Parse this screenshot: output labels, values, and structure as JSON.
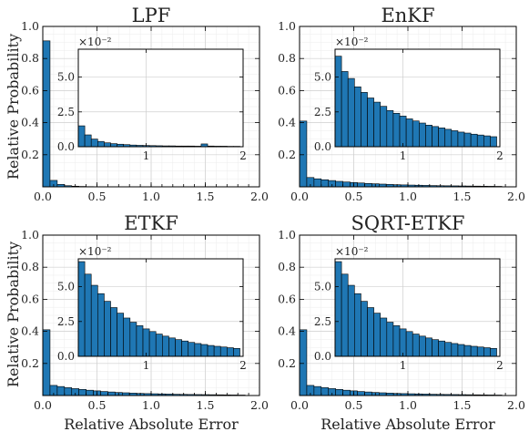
{
  "colors": {
    "bar": "#1f77b4"
  },
  "figure": {
    "ylabel": "Relative Probability",
    "xlabel": "Relative Absolute Error"
  },
  "chart_data": [
    {
      "type": "bar",
      "title": "LPF",
      "xlim": [
        0,
        2
      ],
      "ylim": [
        0,
        1
      ],
      "xticks": [
        "0.0",
        "0.5",
        "1.0",
        "1.5",
        "2.0"
      ],
      "yticks": [
        "0.2",
        "0.4",
        "0.6",
        "0.8",
        "1.0"
      ],
      "bin_width": 0.0667,
      "values": [
        0.91,
        0.04,
        0.015,
        0.007,
        0.004,
        0.0025,
        0.0015,
        0.001,
        0.0008,
        0.0006,
        0.0005,
        0.0004,
        0.0004,
        0.0003,
        0.0003,
        0.0003,
        0.0002,
        0.0002,
        0.0002,
        0.0002,
        0.0002,
        0.0001,
        0.0001,
        0.0001,
        0.0001,
        0.0001,
        0.0001,
        0.0001
      ],
      "inset": {
        "xlim": [
          0.3,
          2
        ],
        "ylim": [
          0,
          7
        ],
        "xticks": [
          "1",
          "2"
        ],
        "yticks": [
          "0.0",
          "2.5",
          "5.0"
        ],
        "multiplier": "×10⁻²",
        "bin_width": 0.0667,
        "values": [
          1.5,
          0.85,
          0.55,
          0.38,
          0.28,
          0.22,
          0.18,
          0.15,
          0.12,
          0.1,
          0.09,
          0.08,
          0.07,
          0.06,
          0.06,
          0.05,
          0.05,
          0.05,
          0.04,
          0.2,
          0.05,
          0.04,
          0.04,
          0.03,
          0.03,
          0.03
        ]
      }
    },
    {
      "type": "bar",
      "title": "EnKF",
      "xlim": [
        0,
        2
      ],
      "ylim": [
        0,
        1
      ],
      "xticks": [
        "0.0",
        "0.5",
        "1.0",
        "1.5",
        "2.0"
      ],
      "yticks": [
        "0.2",
        "0.4",
        "0.6",
        "0.8",
        "1.0"
      ],
      "bin_width": 0.0667,
      "values": [
        0.41,
        0.058,
        0.05,
        0.044,
        0.039,
        0.034,
        0.03,
        0.027,
        0.024,
        0.021,
        0.019,
        0.017,
        0.015,
        0.013,
        0.012,
        0.011,
        0.01,
        0.009,
        0.008,
        0.007,
        0.0065,
        0.006,
        0.0055,
        0.005,
        0.0045,
        0.004,
        0.0035,
        0.003
      ],
      "inset": {
        "xlim": [
          0.3,
          2
        ],
        "ylim": [
          0,
          7
        ],
        "xticks": [
          "1",
          "2"
        ],
        "yticks": [
          "0.0",
          "2.5",
          "5.0"
        ],
        "multiplier": "×10⁻²",
        "bin_width": 0.0667,
        "values": [
          6.5,
          5.4,
          4.9,
          4.3,
          3.9,
          3.5,
          3.2,
          2.9,
          2.6,
          2.4,
          2.2,
          2.0,
          1.85,
          1.7,
          1.55,
          1.45,
          1.35,
          1.25,
          1.15,
          1.05,
          0.98,
          0.9,
          0.84,
          0.78,
          0.72,
          0.66
        ]
      }
    },
    {
      "type": "bar",
      "title": "ETKF",
      "xlim": [
        0,
        2
      ],
      "ylim": [
        0,
        1
      ],
      "xticks": [
        "0.0",
        "0.5",
        "1.0",
        "1.5",
        "2.0"
      ],
      "yticks": [
        "0.2",
        "0.4",
        "0.6",
        "0.8",
        "1.0"
      ],
      "bin_width": 0.0667,
      "values": [
        0.41,
        0.063,
        0.056,
        0.049,
        0.043,
        0.038,
        0.033,
        0.029,
        0.025,
        0.022,
        0.019,
        0.017,
        0.015,
        0.013,
        0.012,
        0.011,
        0.01,
        0.009,
        0.008,
        0.007,
        0.0065,
        0.006,
        0.0055,
        0.005,
        0.0045,
        0.004,
        0.0035,
        0.003
      ],
      "inset": {
        "xlim": [
          0.3,
          2
        ],
        "ylim": [
          0,
          7
        ],
        "xticks": [
          "1",
          "2"
        ],
        "yticks": [
          "0.0",
          "2.5",
          "5.0"
        ],
        "multiplier": "×10⁻²",
        "bin_width": 0.0667,
        "values": [
          6.8,
          5.9,
          5.1,
          4.5,
          3.95,
          3.5,
          3.1,
          2.75,
          2.45,
          2.2,
          1.97,
          1.78,
          1.6,
          1.45,
          1.32,
          1.2,
          1.1,
          1.0,
          0.92,
          0.85,
          0.78,
          0.72,
          0.67,
          0.62,
          0.57,
          0.53
        ]
      }
    },
    {
      "type": "bar",
      "title": "SQRT-ETKF",
      "xlim": [
        0,
        2
      ],
      "ylim": [
        0,
        1
      ],
      "xticks": [
        "0.0",
        "0.5",
        "1.0",
        "1.5",
        "2.0"
      ],
      "yticks": [
        "0.2",
        "0.4",
        "0.6",
        "0.8",
        "1.0"
      ],
      "bin_width": 0.0667,
      "values": [
        0.41,
        0.063,
        0.056,
        0.049,
        0.043,
        0.038,
        0.033,
        0.029,
        0.025,
        0.022,
        0.019,
        0.017,
        0.015,
        0.013,
        0.012,
        0.011,
        0.01,
        0.009,
        0.008,
        0.007,
        0.0065,
        0.006,
        0.0055,
        0.005,
        0.0045,
        0.004,
        0.0035,
        0.003
      ],
      "inset": {
        "xlim": [
          0.3,
          2
        ],
        "ylim": [
          0,
          7
        ],
        "xticks": [
          "1",
          "2"
        ],
        "yticks": [
          "0.0",
          "2.5",
          "5.0"
        ],
        "multiplier": "×10⁻²",
        "bin_width": 0.0667,
        "values": [
          6.8,
          5.9,
          5.1,
          4.5,
          3.95,
          3.5,
          3.1,
          2.75,
          2.45,
          2.2,
          1.97,
          1.78,
          1.6,
          1.45,
          1.32,
          1.2,
          1.1,
          1.0,
          0.92,
          0.85,
          0.78,
          0.72,
          0.67,
          0.62,
          0.57,
          0.53
        ]
      }
    }
  ]
}
